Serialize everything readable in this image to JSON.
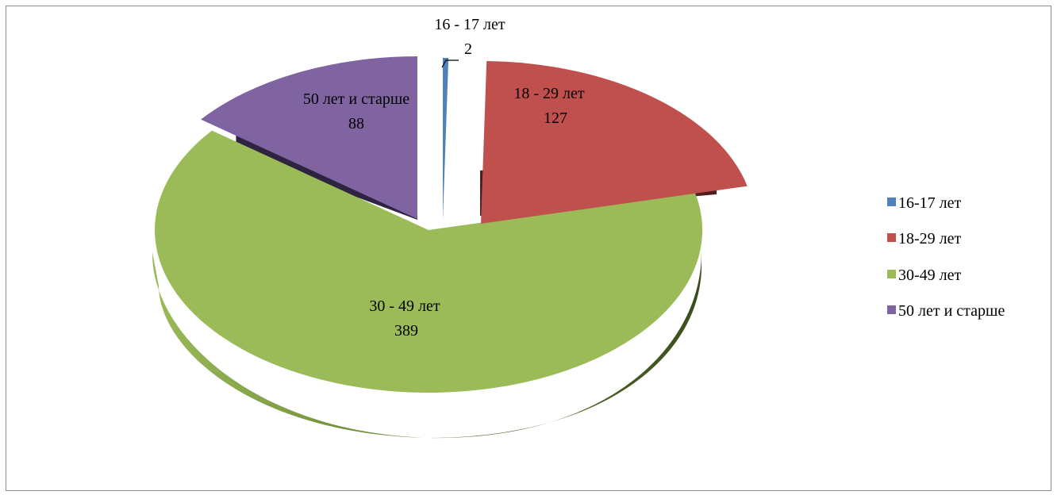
{
  "chart_data": {
    "type": "pie",
    "style": "3d-exploded",
    "categories": [
      "16-17 лет",
      "18-29 лет",
      "30-49 лет",
      "50 лет и старше"
    ],
    "values": [
      2,
      127,
      389,
      88
    ],
    "data_labels": [
      {
        "name": "16 - 17 лет",
        "value": "2"
      },
      {
        "name": "18 - 29 лет",
        "value": "127"
      },
      {
        "name": "30 - 49 лет",
        "value": "389"
      },
      {
        "name": "50 лет и старше",
        "value": "88"
      }
    ],
    "legend": {
      "placement": "right",
      "entries": [
        "16-17 лет",
        "18-29 лет",
        "30-49 лет",
        "50 лет и старше"
      ]
    },
    "colors": [
      "#4f81bd",
      "#c0504d",
      "#9bbb59",
      "#8064a2"
    ]
  }
}
